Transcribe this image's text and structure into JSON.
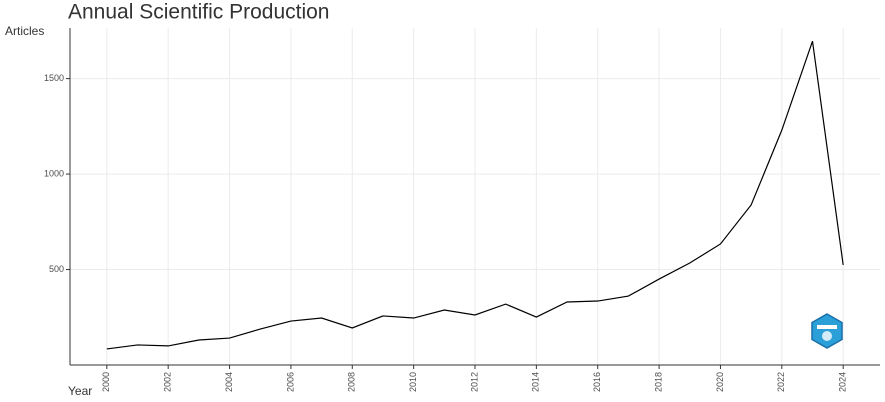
{
  "chart_data": {
    "type": "line",
    "title": "Annual Scientific Production",
    "x_label": "Year",
    "y_label": "Articles",
    "color": "#000000",
    "grid": true,
    "x": [
      2000,
      2001,
      2002,
      2003,
      2004,
      2005,
      2006,
      2007,
      2008,
      2009,
      2010,
      2011,
      2012,
      2013,
      2014,
      2015,
      2016,
      2017,
      2018,
      2019,
      2020,
      2021,
      2022,
      2023,
      2024
    ],
    "values": [
      84,
      105,
      100,
      131,
      141,
      188,
      230,
      246,
      194,
      257,
      246,
      288,
      262,
      319,
      251,
      330,
      335,
      361,
      450,
      534,
      634,
      838,
      1230,
      1696,
      524
    ],
    "xlim": [
      1998.8,
      2025.2
    ],
    "ylim": [
      0,
      1765
    ],
    "xticks": [
      2000,
      2002,
      2004,
      2006,
      2008,
      2010,
      2012,
      2014,
      2016,
      2018,
      2020,
      2022,
      2024
    ],
    "yticks": [
      500,
      1000,
      1500
    ]
  }
}
